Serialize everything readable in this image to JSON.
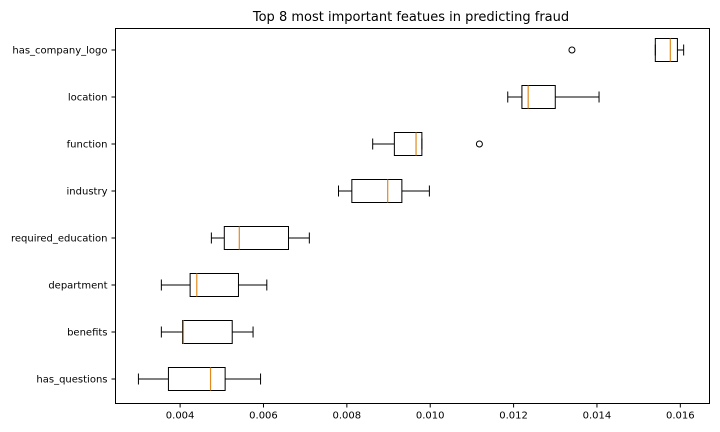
{
  "chart_data": {
    "type": "boxplot",
    "orientation": "horizontal",
    "title": "Top 8 most important featues in predicting fraud",
    "xlabel": "",
    "ylabel": "",
    "xlim": [
      0.00245,
      0.0167
    ],
    "xticks": [
      0.004,
      0.006,
      0.008,
      0.01,
      0.012,
      0.014,
      0.016
    ],
    "xtick_labels": [
      "0.004",
      "0.006",
      "0.008",
      "0.010",
      "0.012",
      "0.014",
      "0.016"
    ],
    "grid": false,
    "median_color": "#e08a1e",
    "boxes": [
      {
        "label": "has_questions",
        "whisker_low": 0.003,
        "q1": 0.00372,
        "median": 0.00473,
        "q3": 0.00508,
        "whisker_high": 0.00593,
        "fliers": []
      },
      {
        "label": "benefits",
        "whisker_low": 0.00355,
        "q1": 0.00406,
        "median": 0.00408,
        "q3": 0.00525,
        "whisker_high": 0.00575,
        "fliers": []
      },
      {
        "label": "department",
        "whisker_low": 0.00355,
        "q1": 0.00424,
        "median": 0.0044,
        "q3": 0.0054,
        "whisker_high": 0.00608,
        "fliers": []
      },
      {
        "label": "required_education",
        "whisker_low": 0.00475,
        "q1": 0.00506,
        "median": 0.00542,
        "q3": 0.0066,
        "whisker_high": 0.0071,
        "fliers": []
      },
      {
        "label": "industry",
        "whisker_low": 0.0078,
        "q1": 0.00812,
        "median": 0.00898,
        "q3": 0.00932,
        "whisker_high": 0.00998,
        "fliers": []
      },
      {
        "label": "function",
        "whisker_low": 0.00862,
        "q1": 0.00914,
        "median": 0.00966,
        "q3": 0.0098,
        "whisker_high": 0.0098,
        "fliers": [
          0.01118
        ]
      },
      {
        "label": "location",
        "whisker_low": 0.01186,
        "q1": 0.0122,
        "median": 0.01235,
        "q3": 0.013,
        "whisker_high": 0.01405,
        "fliers": []
      },
      {
        "label": "has_company_logo",
        "whisker_low": 0.0154,
        "q1": 0.0154,
        "median": 0.01576,
        "q3": 0.01593,
        "whisker_high": 0.01608,
        "fliers": [
          0.0134
        ]
      }
    ]
  }
}
